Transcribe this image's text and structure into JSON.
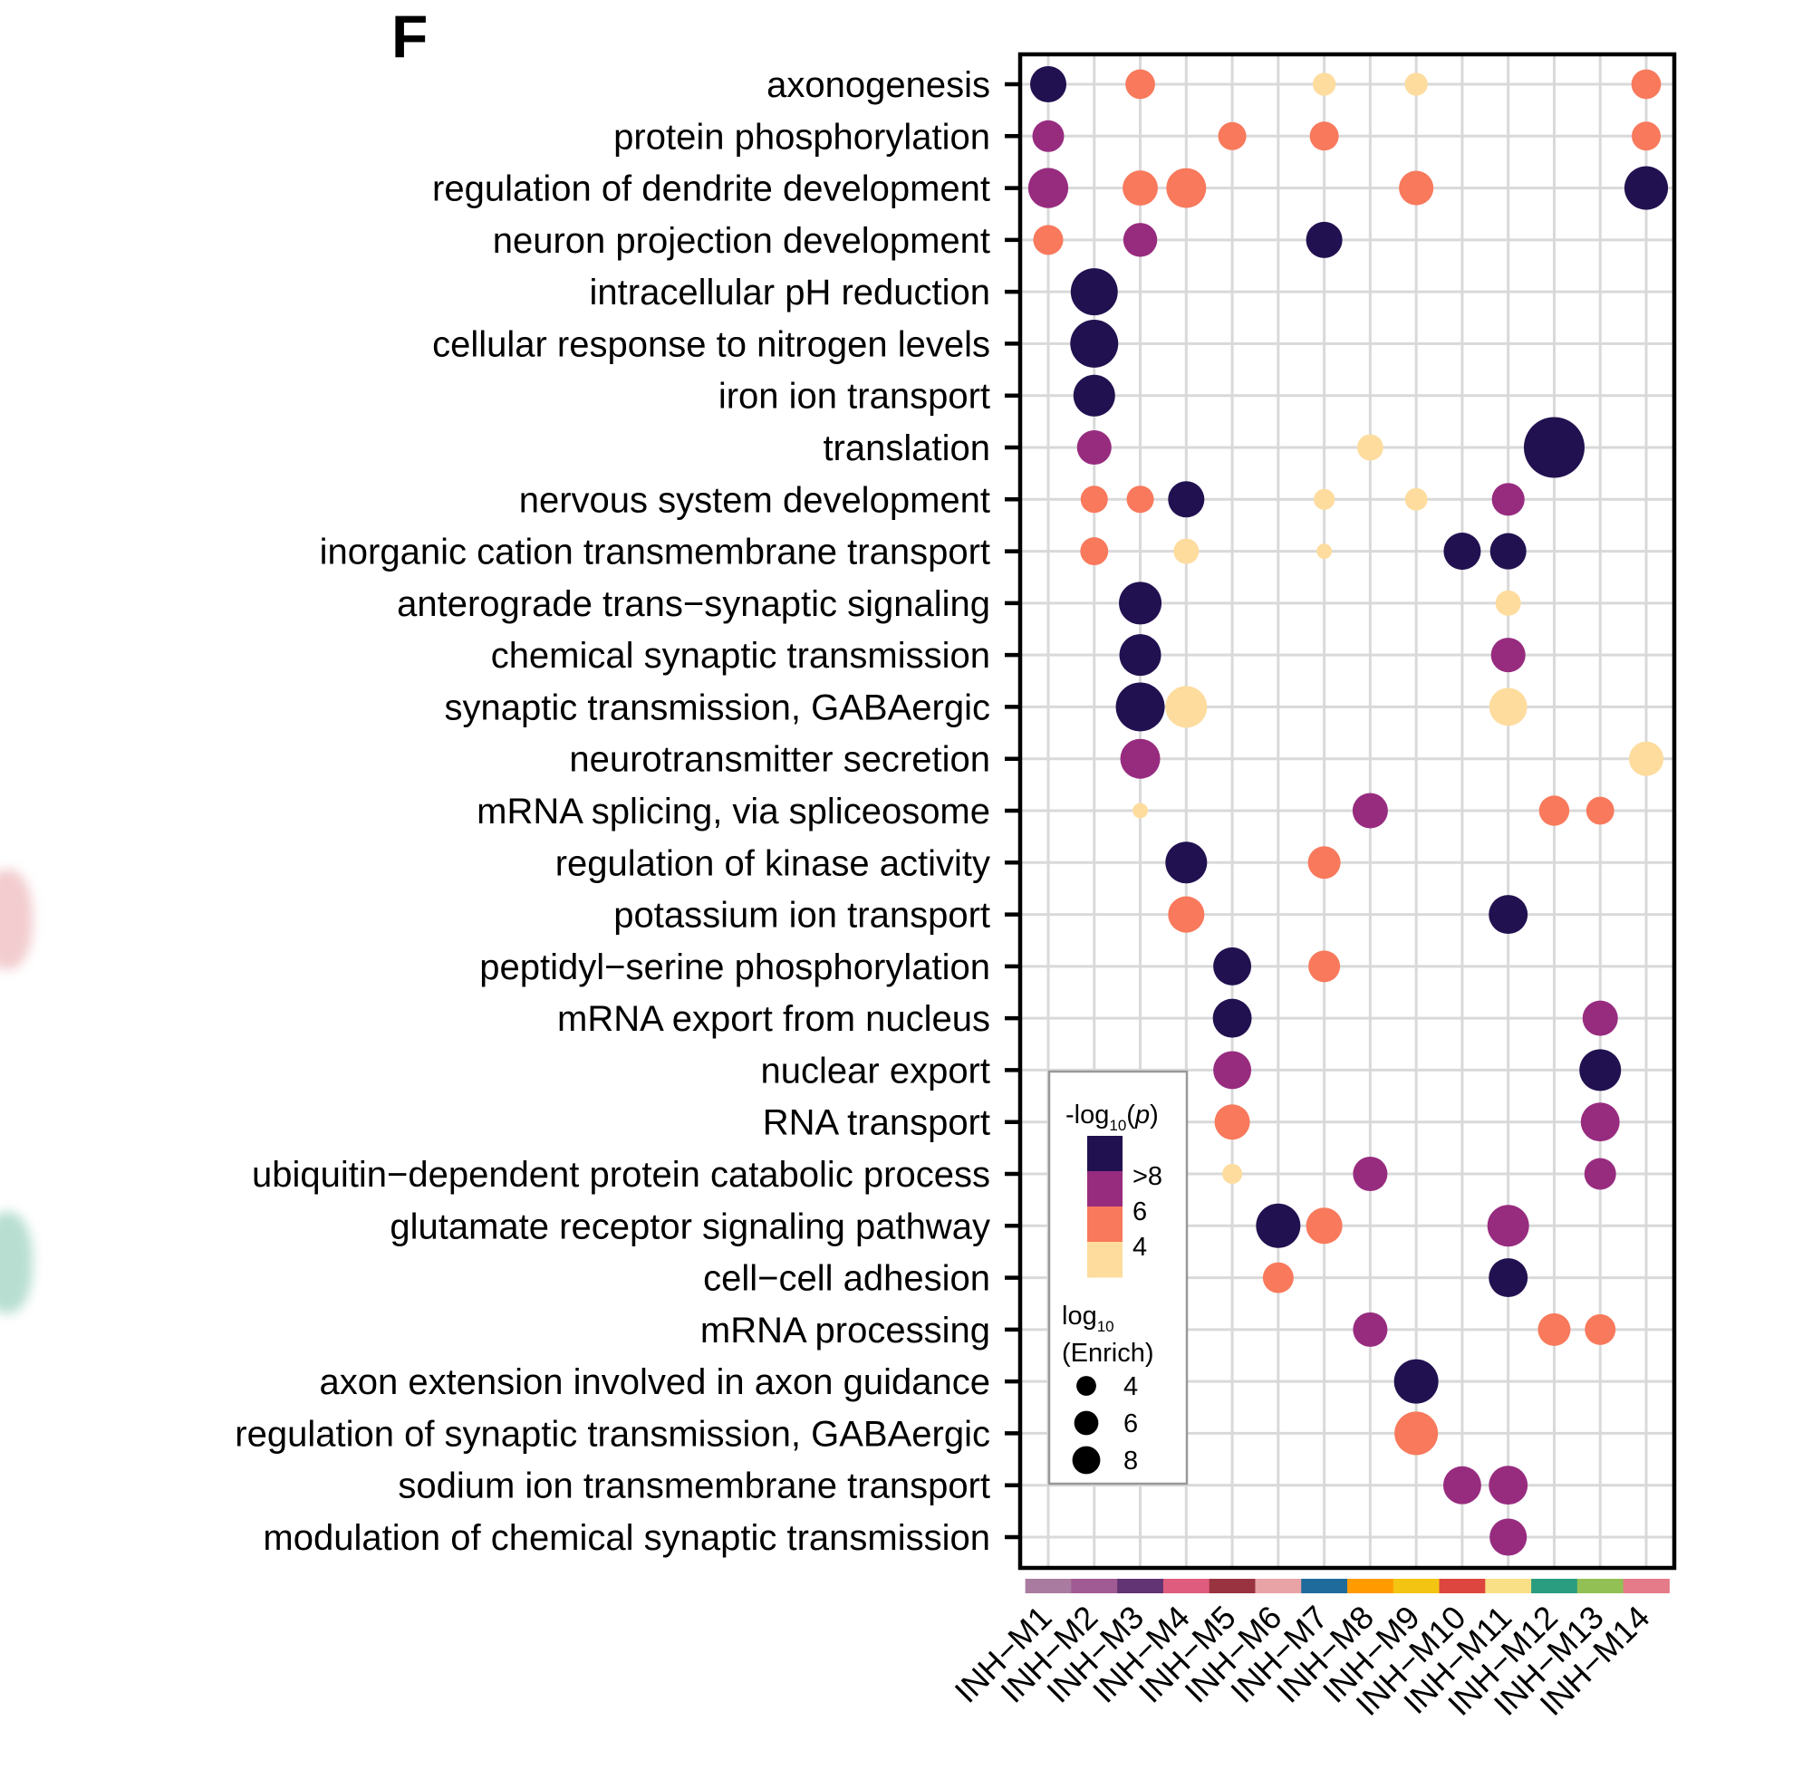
{
  "panel_label": "F",
  "chart_data": {
    "type": "scatter",
    "subtype": "dot-plot",
    "title": "",
    "xlabel": "",
    "ylabel": "",
    "x_categories": [
      "INH−M1",
      "INH−M2",
      "INH−M3",
      "INH−M4",
      "INH−M5",
      "INH−M6",
      "INH−M7",
      "INH−M8",
      "INH−M9",
      "INH−M10",
      "INH−M11",
      "INH−M12",
      "INH−M13",
      "INH−M14"
    ],
    "module_colors": [
      "#A97BA0",
      "#A05A94",
      "#623474",
      "#E05C7E",
      "#9A3340",
      "#E8A3A7",
      "#1F6C9C",
      "#FF9A00",
      "#F3C412",
      "#DC463E",
      "#F9DF86",
      "#2A9C80",
      "#93C055",
      "#E57A88"
    ],
    "y_categories": [
      "axonogenesis",
      "protein phosphorylation",
      "regulation of dendrite development",
      "neuron projection development",
      "intracellular pH reduction",
      "cellular response to nitrogen levels",
      "iron ion transport",
      "translation",
      "nervous system development",
      "inorganic cation transmembrane transport",
      "anterograde trans−synaptic signaling",
      "chemical synaptic transmission",
      "synaptic transmission, GABAergic",
      "neurotransmitter secretion",
      "mRNA splicing, via spliceosome",
      "regulation of kinase activity",
      "potassium ion transport",
      "peptidyl−serine phosphorylation",
      "mRNA export from nucleus",
      "nuclear export",
      "RNA transport",
      "ubiquitin−dependent protein catabolic process",
      "glutamate receptor signaling pathway",
      "cell−cell adhesion",
      "mRNA processing",
      "axon extension involved in axon guidance",
      "regulation of synaptic transmission, GABAergic",
      "sodium ion transmembrane transport",
      "modulation of chemical synaptic transmission"
    ],
    "color_scale": {
      "title_main": "-log",
      "title_sub": "10",
      "title_arg": "p",
      "bins": [
        {
          "label": ">8",
          "color": "#221150",
          "value": 9
        },
        {
          "label": "",
          "color": "#972C7F",
          "value": 7
        },
        {
          "label": "6",
          "color": "#F8795C",
          "value": 5
        },
        {
          "label": "4",
          "color": "#FDDC9E",
          "value": 3
        }
      ],
      "tick_labels": [
        ">8",
        "6",
        "4"
      ]
    },
    "size_scale": {
      "title_main": "log",
      "title_sub": "10",
      "title_line2": "(Enrich)",
      "breaks": [
        4,
        6,
        8
      ]
    },
    "points": [
      {
        "y": 0,
        "x": 0,
        "p": 9,
        "enrich": 13.5
      },
      {
        "y": 0,
        "x": 2,
        "p": 5,
        "enrich": 9
      },
      {
        "y": 0,
        "x": 6,
        "p": 3,
        "enrich": 5.4
      },
      {
        "y": 0,
        "x": 8,
        "p": 3,
        "enrich": 5.4
      },
      {
        "y": 0,
        "x": 13,
        "p": 5,
        "enrich": 9
      },
      {
        "y": 1,
        "x": 0,
        "p": 7,
        "enrich": 10.3
      },
      {
        "y": 1,
        "x": 4,
        "p": 5,
        "enrich": 8.1
      },
      {
        "y": 1,
        "x": 6,
        "p": 5,
        "enrich": 8.6
      },
      {
        "y": 1,
        "x": 13,
        "p": 5,
        "enrich": 8.6
      },
      {
        "y": 2,
        "x": 0,
        "p": 7,
        "enrich": 16.5
      },
      {
        "y": 2,
        "x": 2,
        "p": 5,
        "enrich": 12.7
      },
      {
        "y": 2,
        "x": 3,
        "p": 5,
        "enrich": 16.3
      },
      {
        "y": 2,
        "x": 8,
        "p": 5,
        "enrich": 12.2
      },
      {
        "y": 2,
        "x": 13,
        "p": 9,
        "enrich": 19.5
      },
      {
        "y": 3,
        "x": 0,
        "p": 5,
        "enrich": 9.2
      },
      {
        "y": 3,
        "x": 2,
        "p": 7,
        "enrich": 11.8
      },
      {
        "y": 3,
        "x": 6,
        "p": 9,
        "enrich": 13.5
      },
      {
        "y": 4,
        "x": 1,
        "p": 9,
        "enrich": 22.7
      },
      {
        "y": 5,
        "x": 1,
        "p": 9,
        "enrich": 23.6
      },
      {
        "y": 6,
        "x": 1,
        "p": 9,
        "enrich": 17.8
      },
      {
        "y": 7,
        "x": 1,
        "p": 7,
        "enrich": 12.2
      },
      {
        "y": 7,
        "x": 7,
        "p": 3,
        "enrich": 7
      },
      {
        "y": 7,
        "x": 11,
        "p": 9,
        "enrich": 37.8
      },
      {
        "y": 8,
        "x": 1,
        "p": 5,
        "enrich": 7.6
      },
      {
        "y": 8,
        "x": 2,
        "p": 5,
        "enrich": 7.6
      },
      {
        "y": 8,
        "x": 3,
        "p": 9,
        "enrich": 13.5
      },
      {
        "y": 8,
        "x": 6,
        "p": 3,
        "enrich": 4.5
      },
      {
        "y": 8,
        "x": 8,
        "p": 3,
        "enrich": 5.2
      },
      {
        "y": 8,
        "x": 10,
        "p": 7,
        "enrich": 11
      },
      {
        "y": 9,
        "x": 1,
        "p": 5,
        "enrich": 8
      },
      {
        "y": 9,
        "x": 3,
        "p": 3,
        "enrich": 6.6
      },
      {
        "y": 9,
        "x": 6,
        "p": 3,
        "enrich": 2.4
      },
      {
        "y": 9,
        "x": 9,
        "p": 9,
        "enrich": 14.2
      },
      {
        "y": 9,
        "x": 10,
        "p": 9,
        "enrich": 13.5
      },
      {
        "y": 10,
        "x": 2,
        "p": 9,
        "enrich": 18.6
      },
      {
        "y": 10,
        "x": 10,
        "p": 3,
        "enrich": 6.6
      },
      {
        "y": 11,
        "x": 2,
        "p": 9,
        "enrich": 17.8
      },
      {
        "y": 11,
        "x": 10,
        "p": 7,
        "enrich": 12.2
      },
      {
        "y": 12,
        "x": 2,
        "p": 9,
        "enrich": 24.5
      },
      {
        "y": 12,
        "x": 3,
        "p": 3,
        "enrich": 17.8
      },
      {
        "y": 12,
        "x": 10,
        "p": 3,
        "enrich": 14.8
      },
      {
        "y": 13,
        "x": 2,
        "p": 7,
        "enrich": 16.3
      },
      {
        "y": 13,
        "x": 13,
        "p": 3,
        "enrich": 12.2
      },
      {
        "y": 14,
        "x": 2,
        "p": 3,
        "enrich": 2.4
      },
      {
        "y": 14,
        "x": 7,
        "p": 7,
        "enrich": 12.8
      },
      {
        "y": 14,
        "x": 11,
        "p": 5,
        "enrich": 9.4
      },
      {
        "y": 14,
        "x": 12,
        "p": 5,
        "enrich": 8
      },
      {
        "y": 15,
        "x": 3,
        "p": 9,
        "enrich": 17.8
      },
      {
        "y": 15,
        "x": 6,
        "p": 5,
        "enrich": 10.9
      },
      {
        "y": 16,
        "x": 3,
        "p": 5,
        "enrich": 13.5
      },
      {
        "y": 16,
        "x": 10,
        "p": 9,
        "enrich": 15.5
      },
      {
        "y": 17,
        "x": 4,
        "p": 9,
        "enrich": 14.8
      },
      {
        "y": 17,
        "x": 6,
        "p": 5,
        "enrich": 10.3
      },
      {
        "y": 18,
        "x": 4,
        "p": 9,
        "enrich": 15.5
      },
      {
        "y": 18,
        "x": 12,
        "p": 7,
        "enrich": 12.8
      },
      {
        "y": 19,
        "x": 4,
        "p": 7,
        "enrich": 14.8
      },
      {
        "y": 19,
        "x": 12,
        "p": 9,
        "enrich": 17.8
      },
      {
        "y": 20,
        "x": 4,
        "p": 5,
        "enrich": 12.8
      },
      {
        "y": 20,
        "x": 12,
        "p": 7,
        "enrich": 15.5
      },
      {
        "y": 21,
        "x": 4,
        "p": 3,
        "enrich": 4.1
      },
      {
        "y": 21,
        "x": 7,
        "p": 7,
        "enrich": 12.2
      },
      {
        "y": 21,
        "x": 12,
        "p": 7,
        "enrich": 10.3
      },
      {
        "y": 22,
        "x": 5,
        "p": 9,
        "enrich": 20.2
      },
      {
        "y": 22,
        "x": 6,
        "p": 5,
        "enrich": 13.5
      },
      {
        "y": 22,
        "x": 10,
        "p": 7,
        "enrich": 17.8
      },
      {
        "y": 23,
        "x": 5,
        "p": 5,
        "enrich": 9.7
      },
      {
        "y": 23,
        "x": 10,
        "p": 9,
        "enrich": 15.5
      },
      {
        "y": 24,
        "x": 7,
        "p": 7,
        "enrich": 12.2
      },
      {
        "y": 24,
        "x": 11,
        "p": 5,
        "enrich": 10.9
      },
      {
        "y": 24,
        "x": 12,
        "p": 5,
        "enrich": 9.7
      },
      {
        "y": 25,
        "x": 8,
        "p": 9,
        "enrich": 20.2
      },
      {
        "y": 26,
        "x": 8,
        "p": 5,
        "enrich": 19.4
      },
      {
        "y": 27,
        "x": 9,
        "p": 7,
        "enrich": 14.8
      },
      {
        "y": 27,
        "x": 10,
        "p": 7,
        "enrich": 15.5
      },
      {
        "y": 28,
        "x": 10,
        "p": 7,
        "enrich": 14.2
      }
    ],
    "grid": true,
    "legend_position": "inside-bottom-left"
  }
}
